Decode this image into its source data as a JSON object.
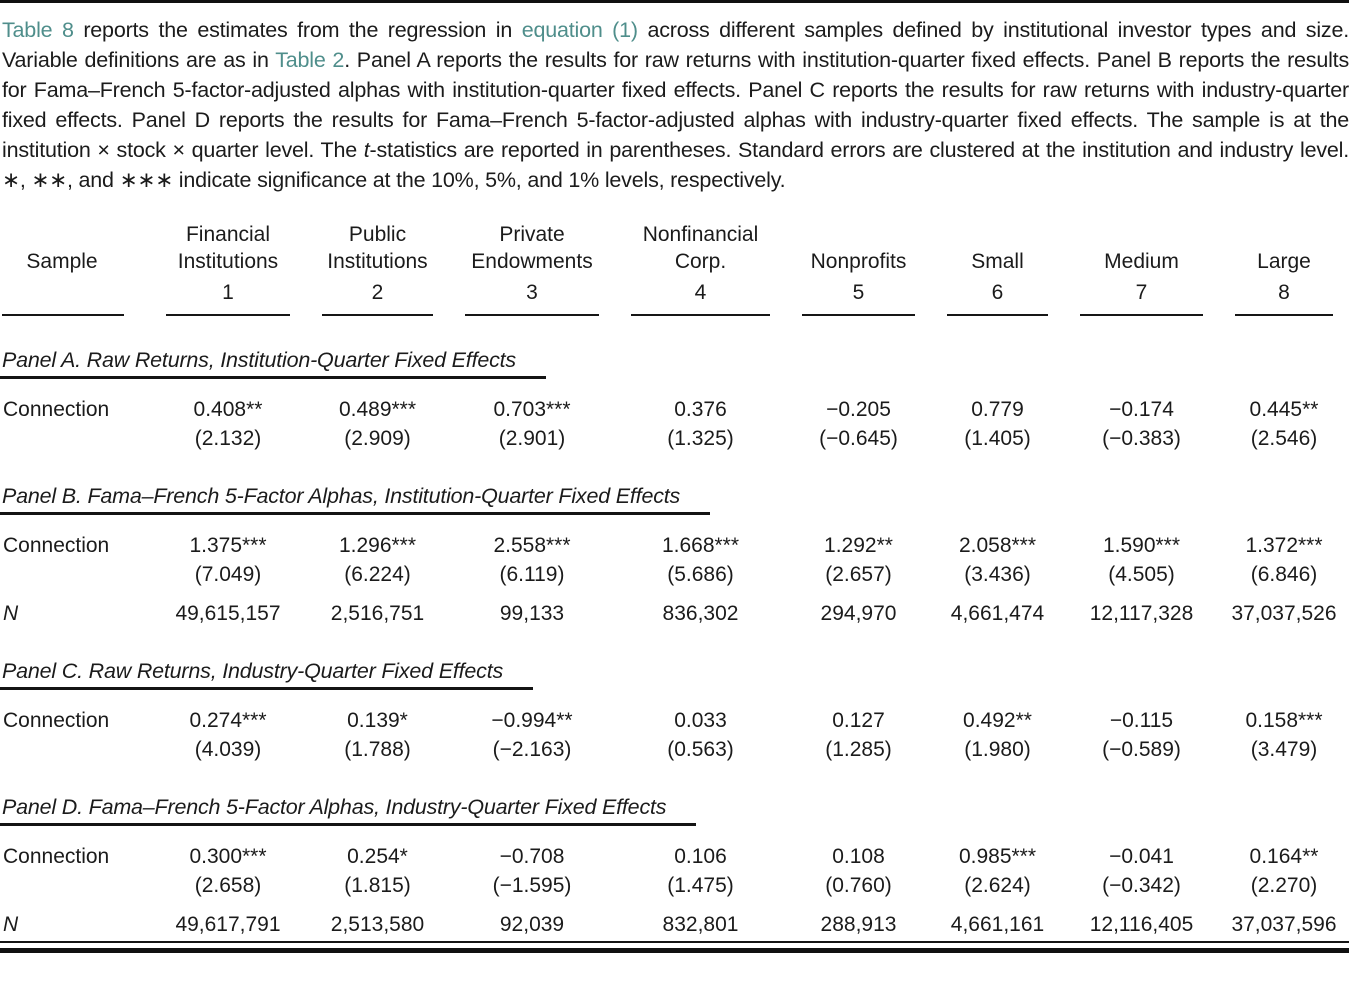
{
  "caption": {
    "segments": [
      {
        "text": "Table 8",
        "link": true
      },
      {
        "text": " reports the estimates from the regression in ",
        "link": false
      },
      {
        "text": "equation (1)",
        "link": true
      },
      {
        "text": " across different samples defined by institutional investor types and size. Variable definitions are as in ",
        "link": false
      },
      {
        "text": "Table 2",
        "link": true
      },
      {
        "text": ". Panel A reports the results for raw returns with institution-quarter fixed effects. Panel B reports the results for Fama–French 5-factor-adjusted alphas with institution-quarter fixed effects. Panel C reports the results for raw returns with industry-quarter fixed effects. Panel D reports the results for Fama–French 5-factor-adjusted alphas with industry-quarter fixed effects. The sample is at the institution × stock × quarter level. The ",
        "link": false
      },
      {
        "text": "t",
        "link": false,
        "italic": true
      },
      {
        "text": "-statistics are reported in parentheses. Standard errors are clustered at the institution and industry level. ∗, ∗∗, and ∗∗∗ indicate significance at the 10%, 5%, and 1% levels, respectively.",
        "link": false
      }
    ]
  },
  "table": {
    "columns": [
      {
        "label_lines": [
          "Sample"
        ],
        "number": ""
      },
      {
        "label_lines": [
          "Financial",
          "Institutions"
        ],
        "number": "1"
      },
      {
        "label_lines": [
          "Public",
          "Institutions"
        ],
        "number": "2"
      },
      {
        "label_lines": [
          "Private",
          "Endowments"
        ],
        "number": "3"
      },
      {
        "label_lines": [
          "Nonfinancial",
          "Corp."
        ],
        "number": "4"
      },
      {
        "label_lines": [
          "Nonprofits"
        ],
        "number": "5"
      },
      {
        "label_lines": [
          "Small"
        ],
        "number": "6"
      },
      {
        "label_lines": [
          "Medium"
        ],
        "number": "7"
      },
      {
        "label_lines": [
          "Large"
        ],
        "number": "8"
      }
    ],
    "panels": [
      {
        "title": "Panel A. Raw Returns, Institution-Quarter Fixed Effects",
        "rows": [
          {
            "kind": "estimate",
            "label": "Connection",
            "values": [
              "0.408**",
              "0.489***",
              "0.703***",
              "0.376",
              "−0.205",
              "0.779",
              "−0.174",
              "0.445**"
            ]
          },
          {
            "kind": "tstat",
            "label": "",
            "values": [
              "(2.132)",
              "(2.909)",
              "(2.901)",
              "(1.325)",
              "(−0.645)",
              "(1.405)",
              "(−0.383)",
              "(2.546)"
            ]
          }
        ]
      },
      {
        "title": "Panel B. Fama–French 5-Factor Alphas, Institution-Quarter Fixed Effects",
        "rows": [
          {
            "kind": "estimate",
            "label": "Connection",
            "values": [
              "1.375***",
              "1.296***",
              "2.558***",
              "1.668***",
              "1.292**",
              "2.058***",
              "1.590***",
              "1.372***"
            ]
          },
          {
            "kind": "tstat",
            "label": "",
            "values": [
              "(7.049)",
              "(6.224)",
              "(6.119)",
              "(5.686)",
              "(2.657)",
              "(3.436)",
              "(4.505)",
              "(6.846)"
            ]
          },
          {
            "kind": "N",
            "label": "N",
            "values": [
              "49,615,157",
              "2,516,751",
              "99,133",
              "836,302",
              "294,970",
              "4,661,474",
              "12,117,328",
              "37,037,526"
            ]
          }
        ]
      },
      {
        "title": "Panel C. Raw Returns, Industry-Quarter Fixed Effects",
        "rows": [
          {
            "kind": "estimate",
            "label": "Connection",
            "values": [
              "0.274***",
              "0.139*",
              "−0.994**",
              "0.033",
              "0.127",
              "0.492**",
              "−0.115",
              "0.158***"
            ]
          },
          {
            "kind": "tstat",
            "label": "",
            "values": [
              "(4.039)",
              "(1.788)",
              "(−2.163)",
              "(0.563)",
              "(1.285)",
              "(1.980)",
              "(−0.589)",
              "(3.479)"
            ]
          }
        ]
      },
      {
        "title": "Panel D. Fama–French 5-Factor Alphas, Industry-Quarter Fixed Effects",
        "rows": [
          {
            "kind": "estimate",
            "label": "Connection",
            "values": [
              "0.300***",
              "0.254*",
              "−0.708",
              "0.106",
              "0.108",
              "0.985***",
              "−0.041",
              "0.164**"
            ]
          },
          {
            "kind": "tstat",
            "label": "",
            "values": [
              "(2.658)",
              "(1.815)",
              "(−1.595)",
              "(1.475)",
              "(0.760)",
              "(2.624)",
              "(−0.342)",
              "(2.270)"
            ]
          },
          {
            "kind": "N",
            "label": "N",
            "values": [
              "49,617,791",
              "2,513,580",
              "92,039",
              "832,801",
              "288,913",
              "4,661,161",
              "12,116,405",
              "37,037,596"
            ]
          }
        ]
      }
    ]
  },
  "colors": {
    "link_teal": "#4f8e8b",
    "text": "#1b1b1b",
    "rule": "#141414"
  }
}
